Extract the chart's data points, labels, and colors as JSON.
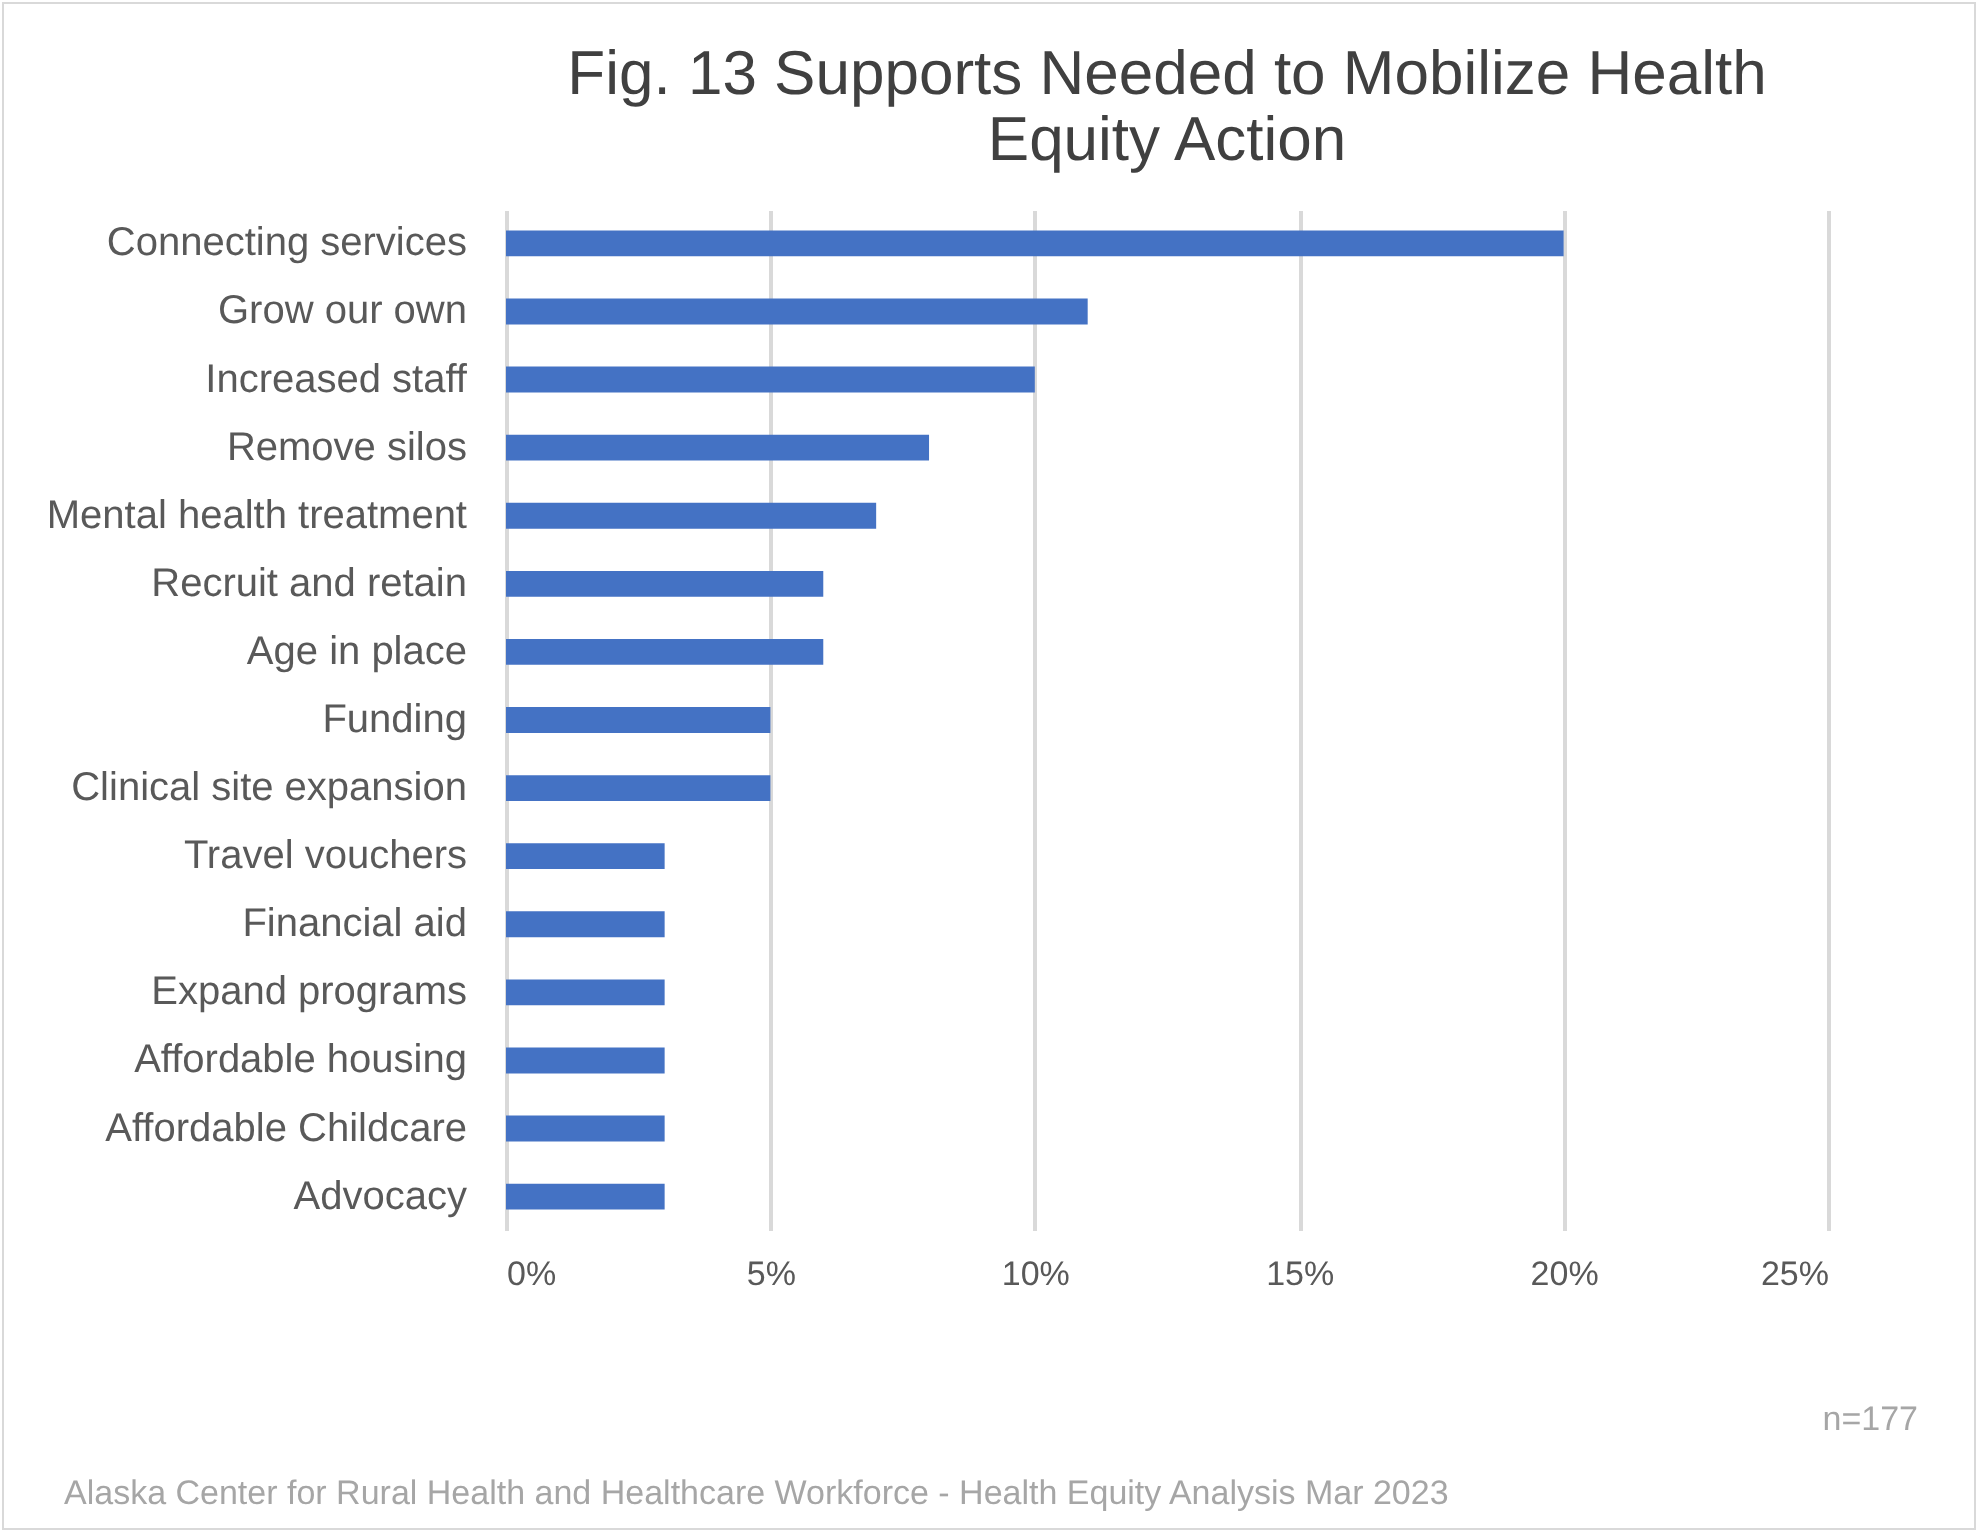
{
  "chart_data": {
    "type": "bar",
    "orientation": "horizontal",
    "title": "Fig. 13 Supports Needed to Mobilize Health Equity Action",
    "categories": [
      "Connecting services",
      "Grow our own",
      "Increased staff",
      "Remove silos",
      "Mental health treatment",
      "Recruit and retain",
      "Age in place",
      "Funding",
      "Clinical site expansion",
      "Travel vouchers",
      "Financial aid",
      "Expand programs",
      "Affordable housing",
      "Affordable Childcare",
      "Advocacy"
    ],
    "values": [
      20,
      11,
      10,
      8,
      7,
      6,
      6,
      5,
      5,
      3,
      3,
      3,
      3,
      3,
      3
    ],
    "color": "#4472c4",
    "xlim": [
      0,
      25
    ],
    "xticks": [
      {
        "value": 0,
        "label": "0%"
      },
      {
        "value": 5,
        "label": "5%"
      },
      {
        "value": 10,
        "label": "10%"
      },
      {
        "value": 15,
        "label": "15%"
      },
      {
        "value": 20,
        "label": "20%"
      },
      {
        "value": 25,
        "label": "25%"
      }
    ],
    "grid": "x",
    "annotations": [
      "n=177",
      "Alaska Center for Rural Health and Healthcare Workforce - Health Equity Analysis Mar 2023"
    ]
  }
}
